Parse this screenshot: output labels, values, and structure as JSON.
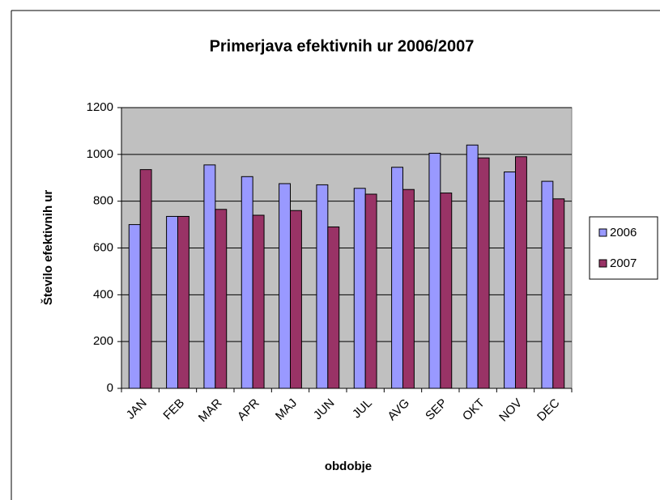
{
  "chart_data": {
    "type": "bar",
    "title": "Primerjava efektivnih ur 2006/2007",
    "x_label": "obdobje",
    "y_label": "Število efektivnih ur",
    "categories": [
      "JAN",
      "FEB",
      "MAR",
      "APR",
      "MAJ",
      "JUN",
      "JUL",
      "AVG",
      "SEP",
      "OKT",
      "NOV",
      "DEC"
    ],
    "series": [
      {
        "name": "2006",
        "color": "#9999ff",
        "values": [
          700,
          735,
          955,
          905,
          875,
          870,
          855,
          945,
          1005,
          1040,
          925,
          885
        ]
      },
      {
        "name": "2007",
        "color": "#993366",
        "values": [
          935,
          735,
          765,
          740,
          760,
          690,
          830,
          850,
          835,
          985,
          990,
          810
        ]
      }
    ],
    "ylim": [
      0,
      1200
    ],
    "yticks": [
      0,
      200,
      400,
      600,
      800,
      1000,
      1200
    ],
    "grid": true,
    "legend": "right"
  }
}
